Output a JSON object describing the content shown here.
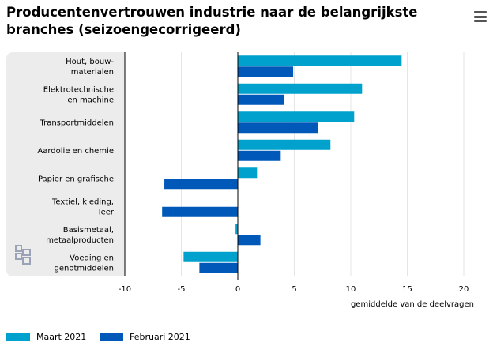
{
  "header": {
    "title_line1": "Producentenvertrouwen industrie naar de belangrijkste",
    "title_line2": "branches (seizoengecorrigeerd)",
    "menu_icon": "hamburger-menu-icon"
  },
  "colors": {
    "series1": "#00a1cd",
    "series2": "#0058b8",
    "panel": "#ececec",
    "grid": "#e5e5e5",
    "axis": "#000000"
  },
  "chart_data": {
    "type": "bar",
    "orientation": "horizontal",
    "title": "Producentenvertrouwen industrie naar de belangrijkste branches (seizoengecorrigeerd)",
    "xlabel": "gemiddelde van de deelvragen",
    "xlim": [
      -10,
      20
    ],
    "xticks": [
      "-10",
      "-5",
      "0",
      "5",
      "10",
      "15",
      "20"
    ],
    "xtick_values": [
      -10,
      -5,
      0,
      5,
      10,
      15,
      20
    ],
    "grid": true,
    "legend_position": "bottom",
    "categories": [
      [
        "Hout, bouw-",
        "materialen"
      ],
      [
        "Elektrotechnische",
        "en machine"
      ],
      [
        "Transportmiddelen"
      ],
      [
        "Aardolie en chemie"
      ],
      [
        "Papier en grafische"
      ],
      [
        "Textiel, kleding,",
        "leer"
      ],
      [
        "Basismetaal,",
        "metaalproducten"
      ],
      [
        "Voeding en",
        "genotmiddelen"
      ]
    ],
    "series": [
      {
        "name": "Maart 2021",
        "values": [
          14.5,
          11.0,
          10.3,
          8.2,
          1.7,
          0.0,
          -0.2,
          -4.8
        ]
      },
      {
        "name": "Februari 2021",
        "values": [
          4.9,
          4.1,
          7.1,
          3.8,
          -6.5,
          -6.7,
          2.0,
          -3.4
        ]
      }
    ]
  },
  "logo_icon": "cbs-logo-icon"
}
